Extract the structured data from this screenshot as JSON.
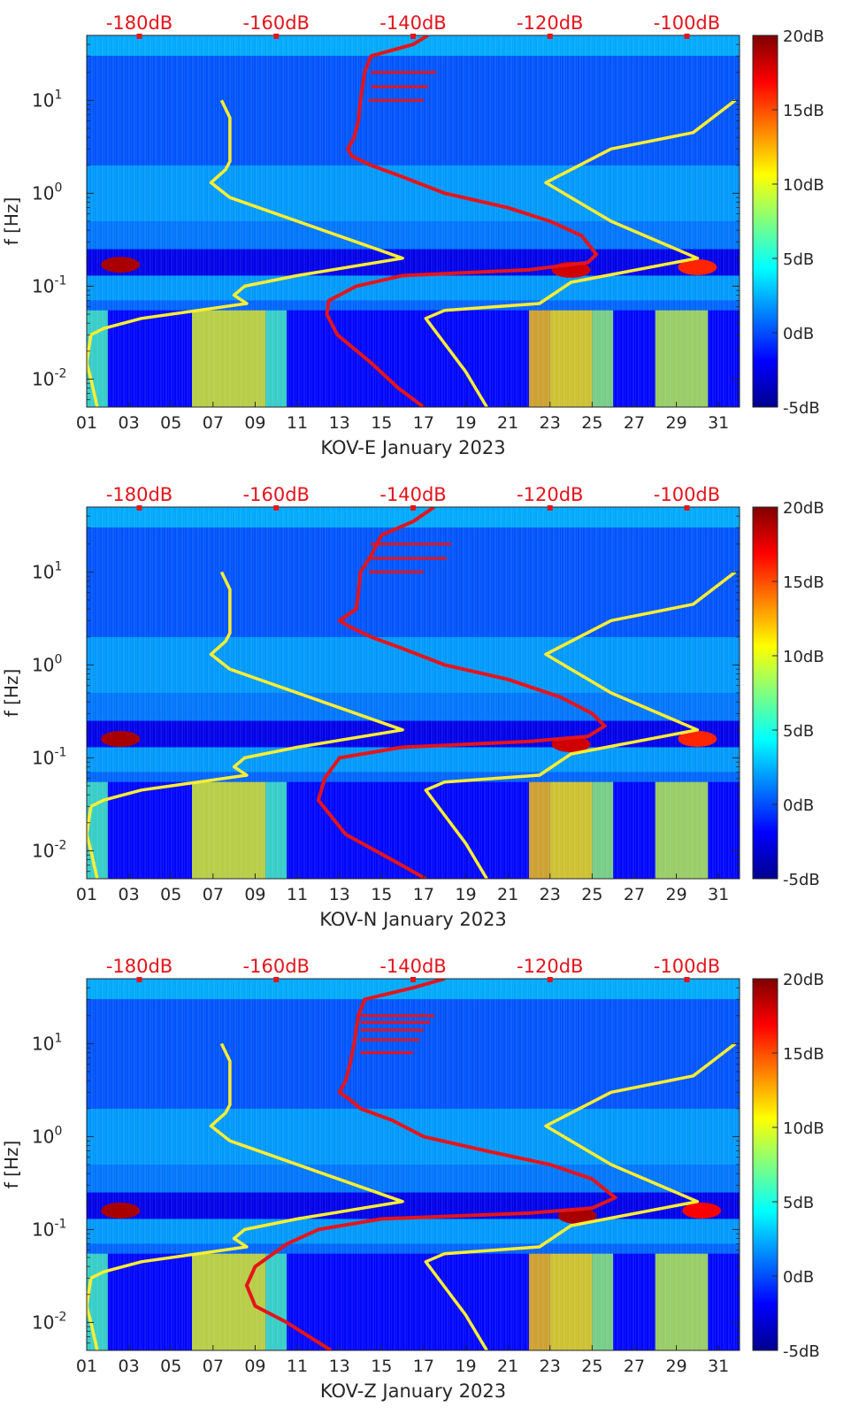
{
  "figure": {
    "ylabel": "f [Hz]",
    "x_tick_labels": [
      "01",
      "03",
      "05",
      "07",
      "09",
      "11",
      "13",
      "15",
      "17",
      "19",
      "21",
      "23",
      "25",
      "27",
      "29",
      "31"
    ],
    "y_tick_labels": [
      {
        "base": "10",
        "exp": "1",
        "value": 10
      },
      {
        "base": "10",
        "exp": "0",
        "value": 1
      },
      {
        "base": "10",
        "exp": "-1",
        "value": 0.1
      },
      {
        "base": "10",
        "exp": "-2",
        "value": 0.01
      }
    ],
    "top_db_labels": [
      "-180dB",
      "-160dB",
      "-140dB",
      "-120dB",
      "-100dB"
    ],
    "colorbar_labels": [
      "20dB",
      "15dB",
      "10dB",
      "5dB",
      "0dB",
      "-5dB"
    ],
    "colors": {
      "noise_model_line": "#ffee33",
      "station_noise_line": "#e4141b",
      "top_label_color": "#e4141b",
      "axis_color": "#262626"
    }
  },
  "chart_data": [
    {
      "type": "heatmap",
      "title": "",
      "xlabel": "KOV-E January 2023",
      "ylabel": "f [Hz]",
      "x_range_days": [
        1,
        32
      ],
      "y_range_hz": [
        0.005,
        50
      ],
      "y_scale": "log",
      "color_range_db": [
        -5,
        20
      ],
      "top_axis_db": [
        -180,
        -160,
        -140,
        -120,
        -100
      ],
      "microseism_peaks": [
        {
          "day": 2.6,
          "freq": 0.17,
          "db": 19
        },
        {
          "day": 24.0,
          "freq": 0.15,
          "db": 18
        },
        {
          "day": 30.0,
          "freq": 0.16,
          "db": 16
        }
      ],
      "series": [
        {
          "name": "noise model bounds",
          "color": "yellow",
          "segments": [
            [
              [
                7.4,
                10
              ],
              [
                7.8,
                6.5
              ],
              [
                7.8,
                2.2
              ],
              [
                7.6,
                1.8
              ],
              [
                6.9,
                1.3
              ],
              [
                7.8,
                0.9
              ],
              [
                16.0,
                0.2
              ],
              [
                11.0,
                0.13
              ],
              [
                8.5,
                0.1
              ],
              [
                8.0,
                0.08
              ],
              [
                8.6,
                0.065
              ],
              [
                3.6,
                0.045
              ],
              [
                1.8,
                0.035
              ],
              [
                1.2,
                0.03
              ],
              [
                1.0,
                0.015
              ],
              [
                1.2,
                0.01
              ],
              [
                1.5,
                0.005
              ]
            ],
            [
              [
                31.8,
                10
              ],
              [
                29.8,
                4.5
              ],
              [
                25.9,
                3.0
              ],
              [
                22.8,
                1.3
              ],
              [
                25.9,
                0.5
              ],
              [
                30.0,
                0.2
              ],
              [
                24.0,
                0.11
              ],
              [
                22.5,
                0.065
              ],
              [
                18.0,
                0.055
              ],
              [
                17.1,
                0.045
              ],
              [
                19.0,
                0.012
              ],
              [
                20.0,
                0.005
              ]
            ]
          ]
        },
        {
          "name": "KOV-E PSD",
          "color": "red",
          "points": [
            [
              17.2,
              50
            ],
            [
              16.5,
              40
            ],
            [
              14.5,
              30
            ],
            [
              14.2,
              20
            ],
            [
              14.0,
              10
            ],
            [
              13.9,
              6
            ],
            [
              13.7,
              4
            ],
            [
              13.4,
              3.0
            ],
            [
              13.6,
              2.5
            ],
            [
              14.5,
              2.0
            ],
            [
              16.0,
              1.5
            ],
            [
              18.0,
              1.0
            ],
            [
              21.0,
              0.7
            ],
            [
              23.0,
              0.5
            ],
            [
              24.5,
              0.35
            ],
            [
              25.2,
              0.22
            ],
            [
              24.8,
              0.18
            ],
            [
              22.0,
              0.15
            ],
            [
              16.0,
              0.13
            ],
            [
              13.8,
              0.1
            ],
            [
              12.5,
              0.07
            ],
            [
              12.4,
              0.05
            ],
            [
              12.9,
              0.03
            ],
            [
              14.5,
              0.015
            ],
            [
              15.8,
              0.008
            ],
            [
              17.0,
              0.005
            ]
          ],
          "spikes": [
            [
              14.5,
              [
                17.6,
                20
              ]
            ],
            [
              14.5,
              [
                17.2,
                14
              ]
            ],
            [
              14.4,
              [
                17.0,
                10
              ]
            ]
          ]
        }
      ]
    },
    {
      "type": "heatmap",
      "title": "",
      "xlabel": "KOV-N January 2023",
      "ylabel": "f [Hz]",
      "x_range_days": [
        1,
        32
      ],
      "y_range_hz": [
        0.005,
        50
      ],
      "y_scale": "log",
      "color_range_db": [
        -5,
        20
      ],
      "top_axis_db": [
        -180,
        -160,
        -140,
        -120,
        -100
      ],
      "microseism_peaks": [
        {
          "day": 2.6,
          "freq": 0.16,
          "db": 19
        },
        {
          "day": 24.0,
          "freq": 0.14,
          "db": 18
        },
        {
          "day": 30.0,
          "freq": 0.16,
          "db": 16
        }
      ],
      "series": [
        {
          "name": "noise model bounds",
          "color": "yellow",
          "segments": [
            [
              [
                7.4,
                10
              ],
              [
                7.8,
                6.5
              ],
              [
                7.8,
                2.2
              ],
              [
                7.6,
                1.8
              ],
              [
                6.9,
                1.3
              ],
              [
                7.8,
                0.9
              ],
              [
                16.0,
                0.2
              ],
              [
                11.0,
                0.13
              ],
              [
                8.5,
                0.1
              ],
              [
                8.0,
                0.08
              ],
              [
                8.6,
                0.065
              ],
              [
                3.6,
                0.045
              ],
              [
                1.8,
                0.035
              ],
              [
                1.2,
                0.03
              ],
              [
                1.0,
                0.015
              ],
              [
                1.2,
                0.01
              ],
              [
                1.5,
                0.005
              ]
            ],
            [
              [
                31.8,
                10
              ],
              [
                29.8,
                4.5
              ],
              [
                25.9,
                3.0
              ],
              [
                22.8,
                1.3
              ],
              [
                25.9,
                0.5
              ],
              [
                30.0,
                0.2
              ],
              [
                24.0,
                0.11
              ],
              [
                22.5,
                0.065
              ],
              [
                18.0,
                0.055
              ],
              [
                17.1,
                0.045
              ],
              [
                19.0,
                0.012
              ],
              [
                20.0,
                0.005
              ]
            ]
          ]
        },
        {
          "name": "KOV-N PSD",
          "color": "red",
          "points": [
            [
              17.5,
              50
            ],
            [
              16.5,
              35
            ],
            [
              15.0,
              25
            ],
            [
              14.5,
              15
            ],
            [
              14.0,
              10
            ],
            [
              13.9,
              6
            ],
            [
              13.8,
              4
            ],
            [
              13.0,
              3.0
            ],
            [
              13.6,
              2.5
            ],
            [
              14.5,
              2.0
            ],
            [
              16.0,
              1.5
            ],
            [
              18.0,
              1.0
            ],
            [
              21.0,
              0.7
            ],
            [
              23.5,
              0.45
            ],
            [
              25.0,
              0.3
            ],
            [
              25.6,
              0.22
            ],
            [
              24.8,
              0.17
            ],
            [
              22.0,
              0.15
            ],
            [
              16.0,
              0.13
            ],
            [
              13.0,
              0.1
            ],
            [
              12.3,
              0.06
            ],
            [
              12.0,
              0.035
            ],
            [
              13.3,
              0.015
            ],
            [
              15.5,
              0.008
            ],
            [
              17.1,
              0.005
            ]
          ],
          "spikes": [
            [
              14.5,
              [
                18.3,
                20
              ]
            ],
            [
              14.5,
              [
                18.1,
                14
              ]
            ],
            [
              14.4,
              [
                17.0,
                10
              ]
            ]
          ]
        }
      ]
    },
    {
      "type": "heatmap",
      "title": "",
      "xlabel": "KOV-Z January 2023",
      "ylabel": "f [Hz]",
      "x_range_days": [
        1,
        32
      ],
      "y_range_hz": [
        0.005,
        50
      ],
      "y_scale": "log",
      "color_range_db": [
        -5,
        20
      ],
      "top_axis_db": [
        -180,
        -160,
        -140,
        -120,
        -100
      ],
      "microseism_peaks": [
        {
          "day": 2.6,
          "freq": 0.16,
          "db": 19
        },
        {
          "day": 24.3,
          "freq": 0.14,
          "db": 19
        },
        {
          "day": 30.2,
          "freq": 0.16,
          "db": 17
        }
      ],
      "series": [
        {
          "name": "noise model bounds",
          "color": "yellow",
          "segments": [
            [
              [
                7.4,
                10
              ],
              [
                7.8,
                6.5
              ],
              [
                7.8,
                2.2
              ],
              [
                7.6,
                1.8
              ],
              [
                6.9,
                1.3
              ],
              [
                7.8,
                0.9
              ],
              [
                16.0,
                0.2
              ],
              [
                11.0,
                0.13
              ],
              [
                8.5,
                0.1
              ],
              [
                8.0,
                0.08
              ],
              [
                8.6,
                0.065
              ],
              [
                3.6,
                0.045
              ],
              [
                1.8,
                0.035
              ],
              [
                1.2,
                0.03
              ],
              [
                1.0,
                0.015
              ],
              [
                1.2,
                0.01
              ],
              [
                1.5,
                0.005
              ]
            ],
            [
              [
                31.8,
                10
              ],
              [
                29.8,
                4.5
              ],
              [
                25.9,
                3.0
              ],
              [
                22.8,
                1.3
              ],
              [
                25.9,
                0.5
              ],
              [
                30.0,
                0.2
              ],
              [
                24.0,
                0.11
              ],
              [
                22.5,
                0.065
              ],
              [
                18.0,
                0.055
              ],
              [
                17.1,
                0.045
              ],
              [
                19.0,
                0.012
              ],
              [
                20.0,
                0.005
              ]
            ]
          ]
        },
        {
          "name": "KOV-Z PSD",
          "color": "red",
          "points": [
            [
              18.0,
              50
            ],
            [
              16.5,
              40
            ],
            [
              14.2,
              30
            ],
            [
              13.9,
              20
            ],
            [
              13.7,
              10
            ],
            [
              13.5,
              6
            ],
            [
              13.3,
              4
            ],
            [
              13.0,
              3.0
            ],
            [
              13.5,
              2.5
            ],
            [
              14.0,
              2.0
            ],
            [
              15.5,
              1.5
            ],
            [
              17.0,
              1.0
            ],
            [
              20.0,
              0.7
            ],
            [
              23.0,
              0.5
            ],
            [
              25.0,
              0.35
            ],
            [
              26.1,
              0.22
            ],
            [
              25.0,
              0.17
            ],
            [
              22.0,
              0.15
            ],
            [
              15.0,
              0.13
            ],
            [
              12.0,
              0.1
            ],
            [
              10.5,
              0.07
            ],
            [
              9.0,
              0.04
            ],
            [
              8.6,
              0.025
            ],
            [
              9.0,
              0.015
            ],
            [
              10.5,
              0.01
            ],
            [
              12.6,
              0.005
            ]
          ],
          "spikes": [
            [
              14.0,
              [
                17.5,
                20
              ]
            ],
            [
              14.0,
              [
                17.3,
                17
              ]
            ],
            [
              14.0,
              [
                17.0,
                14
              ]
            ],
            [
              14.0,
              [
                16.8,
                11
              ]
            ],
            [
              14.0,
              [
                16.5,
                8
              ]
            ]
          ]
        }
      ]
    }
  ]
}
